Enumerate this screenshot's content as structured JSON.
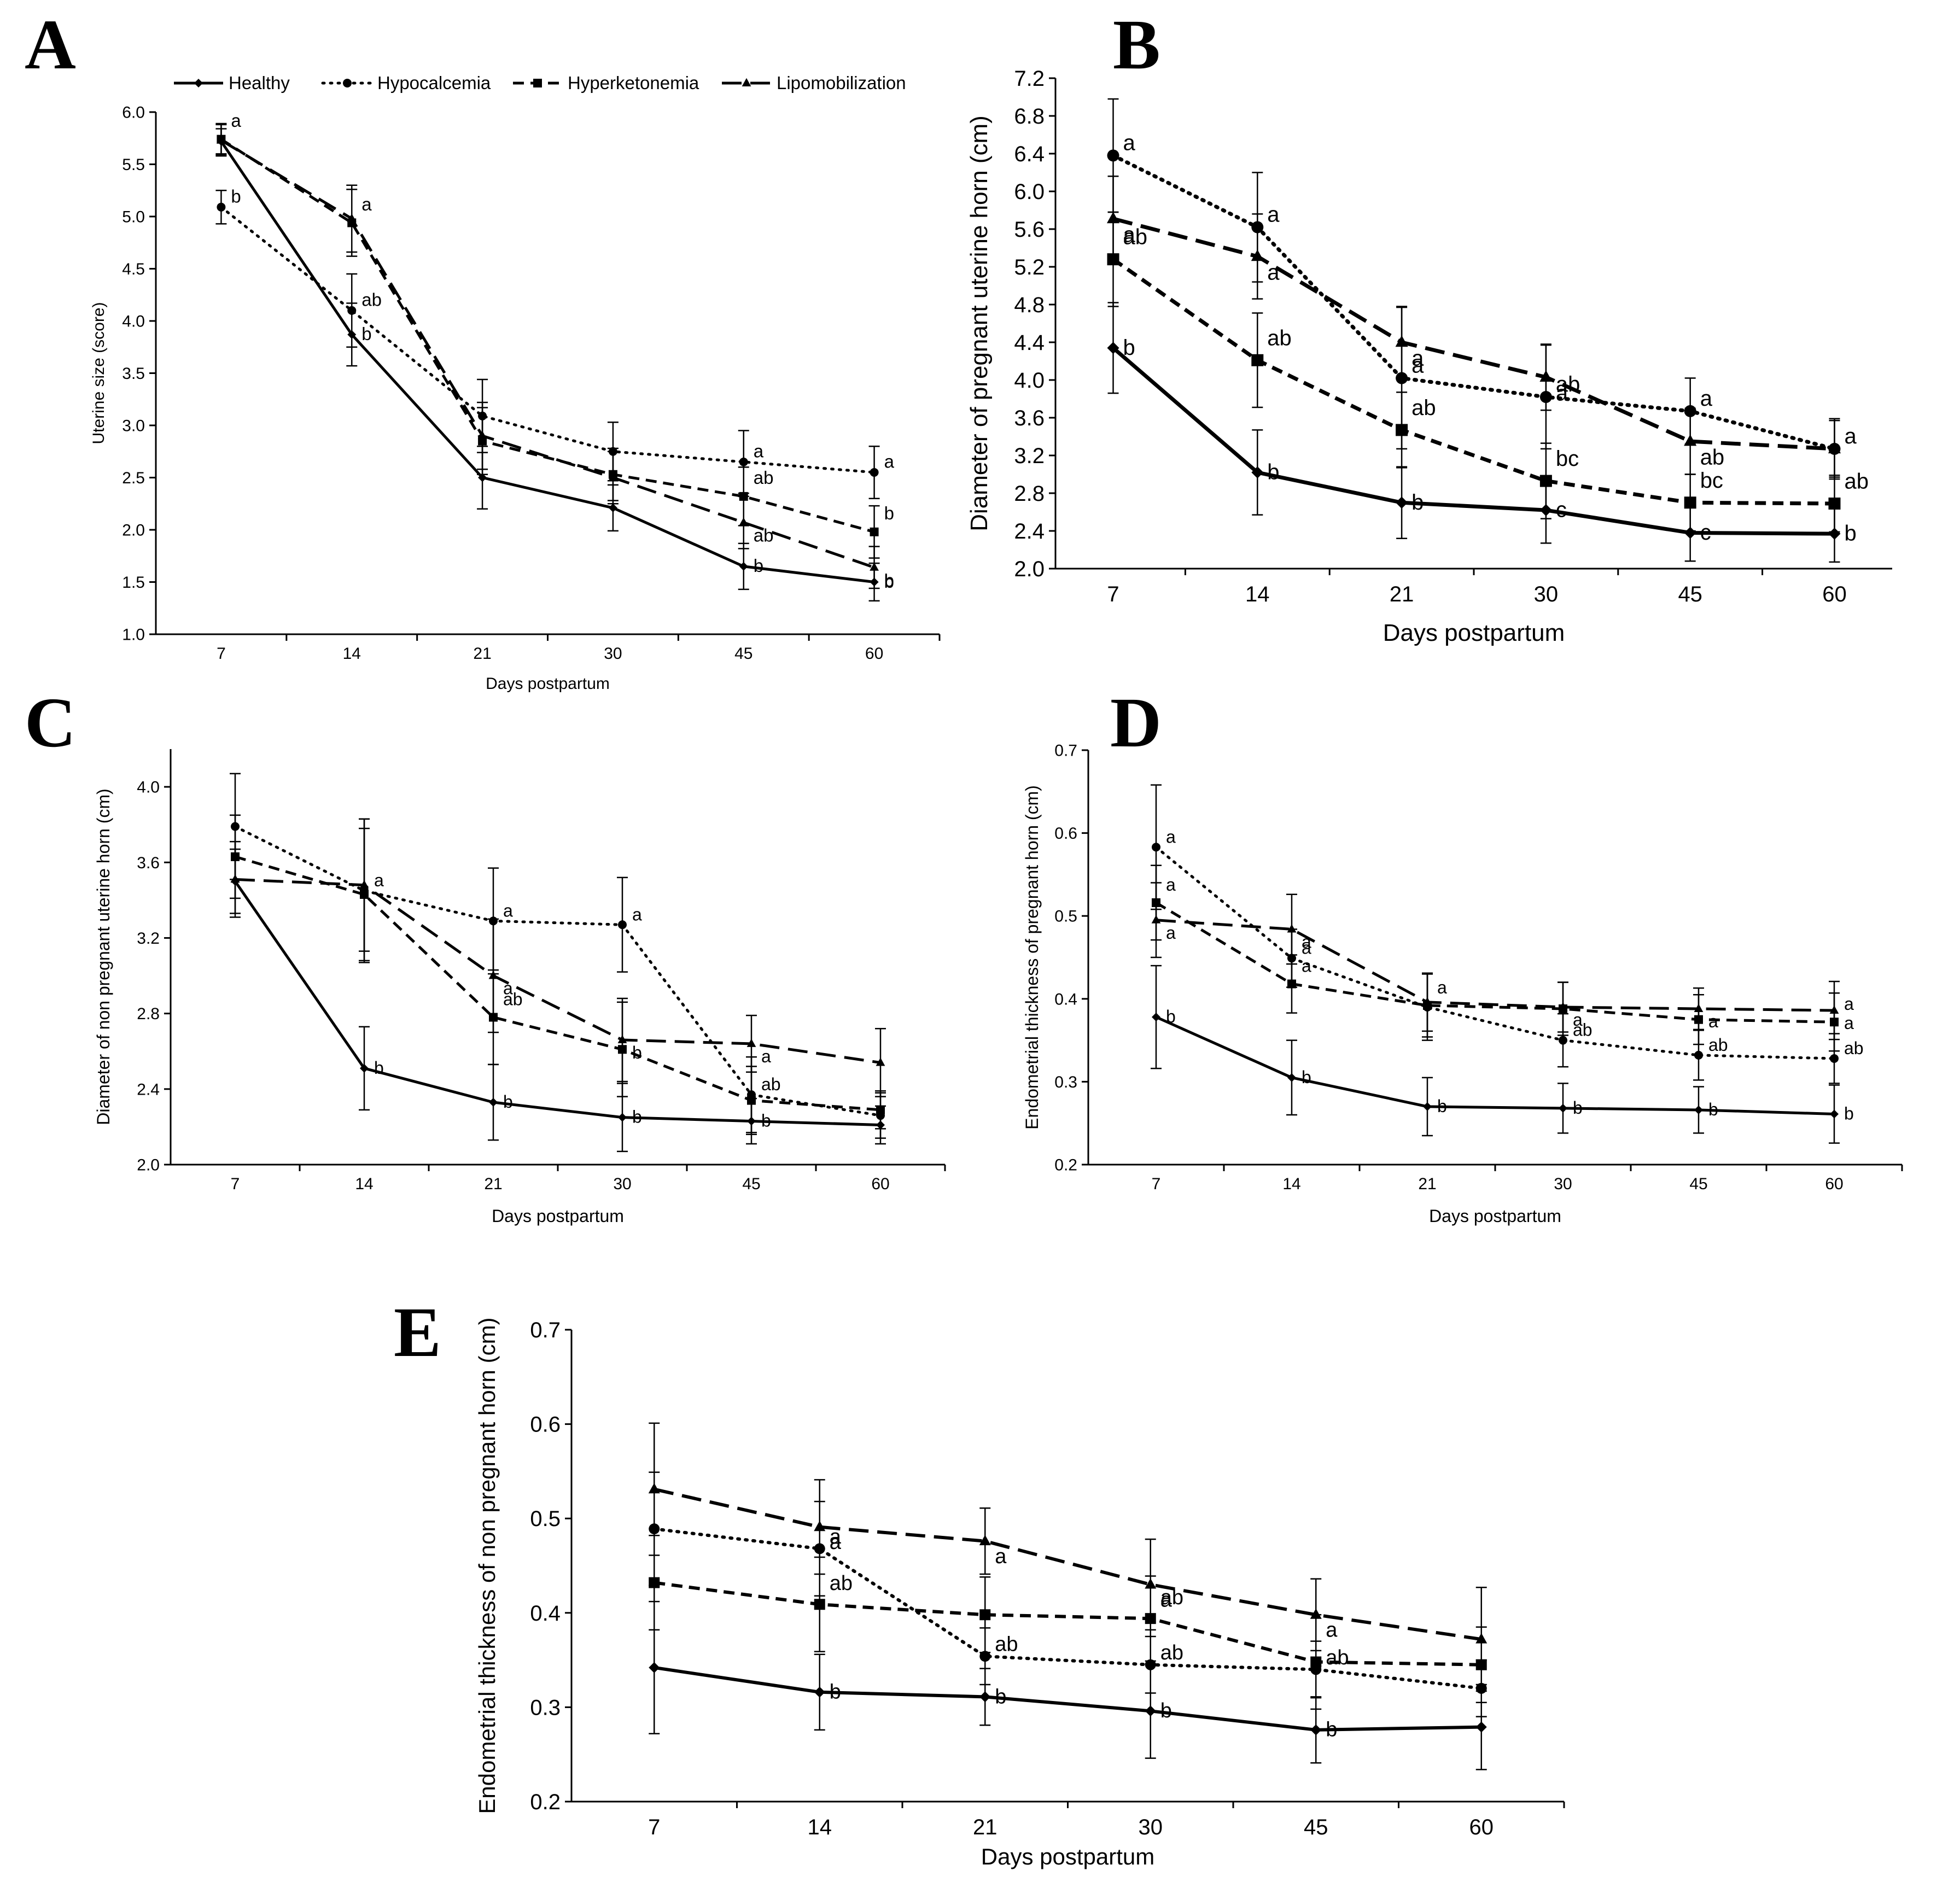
{
  "legend": [
    {
      "name": "Healthy",
      "style": "solid",
      "marker": "diamond"
    },
    {
      "name": "Hypocalcemia",
      "style": "dotted",
      "marker": "circle"
    },
    {
      "name": "Hyperketonemia",
      "style": "dashed",
      "marker": "square"
    },
    {
      "name": "Lipomobilization",
      "style": "longdash",
      "marker": "triangle"
    }
  ],
  "chart_data": [
    {
      "panel": "A",
      "type": "line",
      "categories": [
        "7",
        "14",
        "21",
        "30",
        "45",
        "60"
      ],
      "xlabel": "Days postpartum",
      "ylabel": "Uterine size (score)",
      "ylim": [
        1.0,
        6.0
      ],
      "yticks": [
        "1.0",
        "1.5",
        "2.0",
        "2.5",
        "3.0",
        "3.5",
        "4.0",
        "4.5",
        "5.0",
        "5.5",
        "6.0"
      ],
      "grid": false,
      "series": [
        {
          "name": "Healthy",
          "values": [
            5.72,
            3.87,
            2.5,
            2.21,
            1.65,
            1.5
          ],
          "errors": [
            0.12,
            0.3,
            0.3,
            0.22,
            0.22,
            0.18
          ],
          "labels": [
            "",
            "b",
            "",
            "",
            "b",
            "b"
          ]
        },
        {
          "name": "Hypocalcemia",
          "values": [
            5.09,
            4.1,
            3.09,
            2.75,
            2.65,
            2.55
          ],
          "errors": [
            0.16,
            0.35,
            0.35,
            0.28,
            0.3,
            0.25
          ],
          "labels": [
            "b",
            "ab",
            "",
            "",
            "a",
            "a"
          ]
        },
        {
          "name": "Hyperketonemia",
          "values": [
            5.74,
            4.94,
            2.85,
            2.53,
            2.32,
            1.98
          ],
          "errors": [
            0.15,
            0.32,
            0.32,
            0.25,
            0.28,
            0.25
          ],
          "labels": [
            "a",
            "a",
            "",
            "",
            "ab",
            "b"
          ]
        },
        {
          "name": "Lipomobilization",
          "values": [
            5.73,
            4.98,
            2.9,
            2.5,
            2.07,
            1.64
          ],
          "errors": [
            0.15,
            0.32,
            0.32,
            0.25,
            0.25,
            0.2
          ],
          "labels": [
            "",
            "",
            "",
            "",
            "ab",
            "b"
          ]
        }
      ]
    },
    {
      "panel": "B",
      "type": "line",
      "categories": [
        "7",
        "14",
        "21",
        "30",
        "45",
        "60"
      ],
      "xlabel": "Days postpartum",
      "ylabel": "Diameter of pregnant uterine horn (cm)",
      "ylim": [
        2.0,
        7.2
      ],
      "yticks": [
        "2.0",
        "2.4",
        "2.8",
        "3.2",
        "3.6",
        "4.0",
        "4.4",
        "4.8",
        "5.2",
        "5.6",
        "6.0",
        "6.4",
        "6.8",
        "7.2"
      ],
      "grid": false,
      "series": [
        {
          "name": "Healthy",
          "values": [
            4.34,
            3.02,
            2.7,
            2.62,
            2.38,
            2.37
          ],
          "errors": [
            0.48,
            0.45,
            0.38,
            0.35,
            0.3,
            0.3
          ],
          "labels": [
            "b",
            "b",
            "b",
            "c",
            "c",
            "b"
          ]
        },
        {
          "name": "Hypocalcemia",
          "values": [
            6.38,
            5.62,
            4.02,
            3.82,
            3.67,
            3.27
          ],
          "errors": [
            0.6,
            0.58,
            0.75,
            0.55,
            0.35,
            0.3
          ],
          "labels": [
            "a",
            "a",
            "a",
            "ab",
            "a",
            "a"
          ]
        },
        {
          "name": "Hyperketonemia",
          "values": [
            5.28,
            4.21,
            3.47,
            2.93,
            2.7,
            2.69
          ],
          "errors": [
            0.5,
            0.5,
            0.4,
            0.4,
            0.3,
            0.3
          ],
          "labels": [
            "ab",
            "ab",
            "ab",
            "bc",
            "bc",
            "ab"
          ]
        },
        {
          "name": "Lipomobilization",
          "values": [
            5.71,
            5.31,
            4.4,
            4.03,
            3.35,
            3.27
          ],
          "errors": [
            0.45,
            0.45,
            0.38,
            0.35,
            0.35,
            0.32
          ],
          "labels": [
            "a",
            "a",
            "a",
            "a",
            "ab",
            ""
          ]
        }
      ]
    },
    {
      "panel": "C",
      "type": "line",
      "categories": [
        "7",
        "14",
        "21",
        "30",
        "45",
        "60"
      ],
      "xlabel": "Days postpartum",
      "ylabel": "Diameter of non pregnant uterine horn (cm)",
      "ylim": [
        2.0,
        4.2
      ],
      "yticks": [
        "2.0",
        "2.4",
        "2.8",
        "3.2",
        "3.6",
        "4.0"
      ],
      "grid": false,
      "series": [
        {
          "name": "Healthy",
          "values": [
            3.5,
            2.51,
            2.33,
            2.25,
            2.23,
            2.21
          ],
          "errors": [
            0.17,
            0.22,
            0.2,
            0.18,
            0.12,
            0.1
          ],
          "labels": [
            "",
            "b",
            "b",
            "b",
            "b",
            ""
          ]
        },
        {
          "name": "Hypocalcemia",
          "values": [
            3.79,
            3.45,
            3.29,
            3.27,
            2.37,
            2.26
          ],
          "errors": [
            0.28,
            0.38,
            0.28,
            0.25,
            0.2,
            0.12
          ],
          "labels": [
            "",
            "a",
            "a",
            "a",
            "ab",
            ""
          ]
        },
        {
          "name": "Hyperketonemia",
          "values": [
            3.63,
            3.43,
            2.78,
            2.61,
            2.34,
            2.29
          ],
          "errors": [
            0.22,
            0.35,
            0.25,
            0.25,
            0.18,
            0.1
          ],
          "labels": [
            "",
            "",
            "ab",
            "",
            "",
            ""
          ]
        },
        {
          "name": "Lipomobilization",
          "values": [
            3.51,
            3.48,
            3.0,
            2.66,
            2.64,
            2.54
          ],
          "errors": [
            0.2,
            0.35,
            0.3,
            0.22,
            0.15,
            0.18
          ],
          "labels": [
            "",
            "",
            "a",
            "b",
            "a",
            ""
          ]
        }
      ]
    },
    {
      "panel": "D",
      "type": "line",
      "categories": [
        "7",
        "14",
        "21",
        "30",
        "45",
        "60"
      ],
      "xlabel": "Days postpartum",
      "ylabel": "Endometrial thickness of  pregnant horn  (cm)",
      "ylim": [
        0.2,
        0.7
      ],
      "yticks": [
        "0.2",
        "0.3",
        "0.4",
        "0.5",
        "0.6",
        "0.7"
      ],
      "grid": false,
      "series": [
        {
          "name": "Healthy",
          "values": [
            0.378,
            0.305,
            0.27,
            0.268,
            0.266,
            0.261
          ],
          "errors": [
            0.062,
            0.045,
            0.035,
            0.03,
            0.028,
            0.035
          ],
          "labels": [
            "b",
            "b",
            "b",
            "b",
            "b",
            "b"
          ]
        },
        {
          "name": "Hypocalcemia",
          "values": [
            0.583,
            0.449,
            0.39,
            0.35,
            0.332,
            0.328
          ],
          "errors": [
            0.075,
            0.035,
            0.04,
            0.032,
            0.03,
            0.03
          ],
          "labels": [
            "a",
            "a",
            "",
            "ab",
            "ab",
            "ab"
          ]
        },
        {
          "name": "Hyperketonemia",
          "values": [
            0.516,
            0.418,
            0.392,
            0.388,
            0.375,
            0.372
          ],
          "errors": [
            0.045,
            0.035,
            0.038,
            0.032,
            0.03,
            0.035
          ],
          "labels": [
            "a",
            "a",
            "a",
            "",
            "",
            "a"
          ]
        },
        {
          "name": "Lipomobilization",
          "values": [
            0.495,
            0.484,
            0.396,
            0.39,
            0.388,
            0.386
          ],
          "errors": [
            0.045,
            0.042,
            0.035,
            0.03,
            0.025,
            0.035
          ],
          "labels": [
            "a",
            "a",
            "",
            "a",
            "a",
            "a"
          ]
        }
      ]
    },
    {
      "panel": "E",
      "type": "line",
      "categories": [
        "7",
        "14",
        "21",
        "30",
        "45",
        "60"
      ],
      "xlabel": "Days postpartum",
      "ylabel": "Endometrial thickness of non pregnant horn (cm)",
      "ylim": [
        0.2,
        0.7
      ],
      "yticks": [
        "0.2",
        "0.3",
        "0.4",
        "0.5",
        "0.6",
        "0.7"
      ],
      "grid": false,
      "series": [
        {
          "name": "Healthy",
          "values": [
            0.342,
            0.316,
            0.311,
            0.296,
            0.276,
            0.279
          ],
          "errors": [
            0.07,
            0.04,
            0.03,
            0.05,
            0.035,
            0.045
          ],
          "labels": [
            "",
            "b",
            "b",
            "b",
            "b",
            ""
          ]
        },
        {
          "name": "Hypocalcemia",
          "values": [
            0.489,
            0.468,
            0.354,
            0.345,
            0.34,
            0.32
          ],
          "errors": [
            0.06,
            0.05,
            0.03,
            0.03,
            0.03,
            0.03
          ],
          "labels": [
            "",
            "a",
            "ab",
            "ab",
            "ab",
            ""
          ]
        },
        {
          "name": "Hyperketonemia",
          "values": [
            0.432,
            0.409,
            0.398,
            0.394,
            0.348,
            0.345
          ],
          "errors": [
            0.05,
            0.05,
            0.04,
            0.045,
            0.05,
            0.04
          ],
          "labels": [
            "",
            "ab",
            "",
            "ab",
            "",
            ""
          ]
        },
        {
          "name": "Lipomobilization",
          "values": [
            0.531,
            0.491,
            0.476,
            0.43,
            0.398,
            0.372
          ],
          "errors": [
            0.07,
            0.05,
            0.035,
            0.048,
            0.038,
            0.055
          ],
          "labels": [
            "",
            "a",
            "a",
            "a",
            "a",
            ""
          ]
        }
      ]
    }
  ]
}
